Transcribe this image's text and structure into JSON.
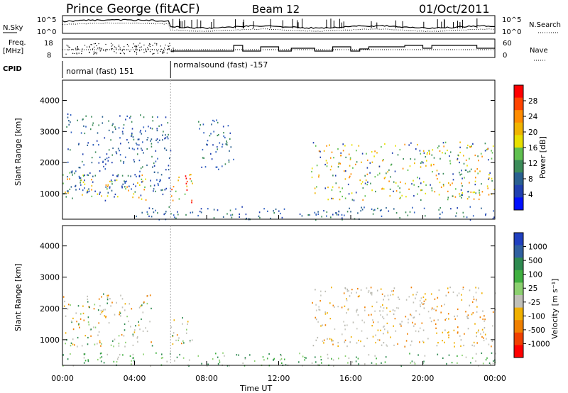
{
  "header": {
    "station": "Prince George (fitACF)",
    "beam": "Beam 12",
    "date": "01/Oct/2011"
  },
  "sky_panel": {
    "left_label": "N.Sky",
    "left_ticks": [
      "10^5",
      "10^0"
    ],
    "right_ticks": [
      "10^5",
      "10^0"
    ],
    "right_label": "N.Search",
    "right_label_style": "dotted"
  },
  "freq_panel": {
    "left_label_top": "Freq.",
    "left_label_bottom": "[MHz]",
    "left_ticks": [
      "18",
      "8"
    ],
    "right_ticks": [
      "60",
      "0"
    ],
    "right_label": "Nave",
    "right_label_style": "dotted"
  },
  "cpid": {
    "label": "CPID",
    "modes": [
      {
        "text": "normal (fast) 151",
        "start_hour": 0,
        "end_hour": 6
      },
      {
        "text": "normalsound (fast) -157",
        "start_hour": 6,
        "end_hour": 24
      }
    ]
  },
  "chart_data": [
    {
      "type": "heatmap",
      "name": "power",
      "ylabel": "Slant Range [km]",
      "yticks": [
        1000,
        2000,
        3000,
        4000
      ],
      "ylim": [
        180,
        4650
      ],
      "xlim": [
        0,
        24
      ],
      "colorbar_label": "Power [dB]",
      "colorbar_ticks": [
        "28",
        "24",
        "20",
        "16",
        "12",
        "8",
        "4"
      ],
      "colorbar_colors": [
        "#ff0000",
        "#ff4400",
        "#ff8c00",
        "#f0b400",
        "#e8e000",
        "#60c050",
        "#3c8c5a",
        "#2a6090",
        "#2040b0",
        "#0010ff"
      ],
      "scatter_regions": [
        {
          "hours": [
            0,
            4.8
          ],
          "range_km": [
            800,
            1700
          ],
          "level": "medium-high"
        },
        {
          "hours": [
            0.2,
            6
          ],
          "range_km": [
            1000,
            3600
          ],
          "level": "low"
        },
        {
          "hours": [
            6,
            7.2
          ],
          "range_km": [
            700,
            1800
          ],
          "level": "high"
        },
        {
          "hours": [
            7.5,
            9.5
          ],
          "range_km": [
            1800,
            3400
          ],
          "level": "low"
        },
        {
          "hours": [
            13.8,
            24
          ],
          "range_km": [
            800,
            2700
          ],
          "level": "medium-high"
        },
        {
          "hours": [
            4,
            24
          ],
          "range_km": [
            180,
            600
          ],
          "level": "low"
        }
      ]
    },
    {
      "type": "heatmap",
      "name": "velocity",
      "ylabel": "Slant Range [km]",
      "yticks": [
        1000,
        2000,
        3000,
        4000
      ],
      "ylim": [
        180,
        4650
      ],
      "xlim": [
        0,
        24
      ],
      "xlabel": "Time UT",
      "xticks": [
        "00:00",
        "04:00",
        "08:00",
        "12:00",
        "16:00",
        "20:00",
        "00:00"
      ],
      "colorbar_label": "Velocity [m s⁻¹]",
      "colorbar_ticks": [
        "1000",
        "500",
        "100",
        "25",
        "-25",
        "-100",
        "-500",
        "-1000"
      ],
      "colorbar_colors": [
        "#2040c0",
        "#3060a0",
        "#2e8a50",
        "#40b040",
        "#8cd070",
        "#c0c0b8",
        "#f0b000",
        "#f08000",
        "#f04000",
        "#ff0000"
      ],
      "scatter_regions": [
        {
          "hours": [
            0,
            5
          ],
          "range_km": [
            800,
            2500
          ],
          "level": "mixed"
        },
        {
          "hours": [
            6,
            7.2
          ],
          "range_km": [
            700,
            1800
          ],
          "level": "mixed"
        },
        {
          "hours": [
            13.8,
            24
          ],
          "range_km": [
            800,
            2700
          ],
          "level": "gray"
        },
        {
          "hours": [
            0,
            24
          ],
          "range_km": [
            180,
            600
          ],
          "level": "green"
        }
      ]
    }
  ]
}
